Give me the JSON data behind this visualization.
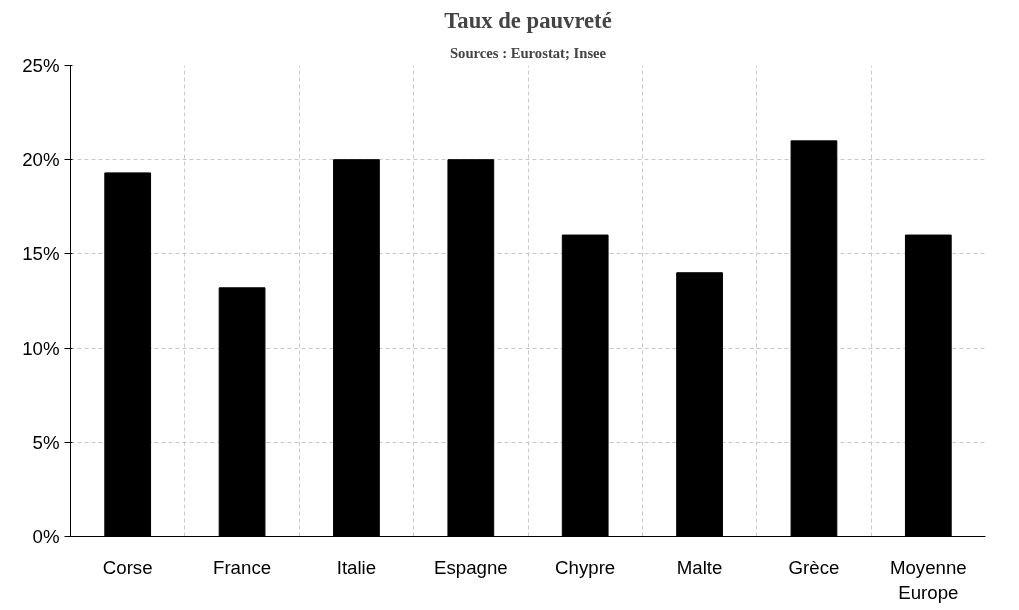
{
  "chart_data": {
    "type": "bar",
    "title": "Taux de pauvreté",
    "subtitle": "Sources : Eurostat; Insee",
    "categories": [
      "Corse",
      "France",
      "Italie",
      "Espagne",
      "Chypre",
      "Malte",
      "Grèce",
      "Moyenne Europe"
    ],
    "values": [
      19.3,
      13.2,
      20.0,
      20.0,
      16.0,
      14.0,
      21.0,
      16.0
    ],
    "color": "#000000",
    "ylim": [
      0,
      25
    ],
    "yticks": [
      {
        "value": 0,
        "label": "0%"
      },
      {
        "value": 5,
        "label": "5%"
      },
      {
        "value": 10,
        "label": "10%"
      },
      {
        "value": 15,
        "label": "15%"
      },
      {
        "value": 20,
        "label": "20%"
      },
      {
        "value": 25,
        "label": "25%"
      }
    ],
    "grid": true
  }
}
